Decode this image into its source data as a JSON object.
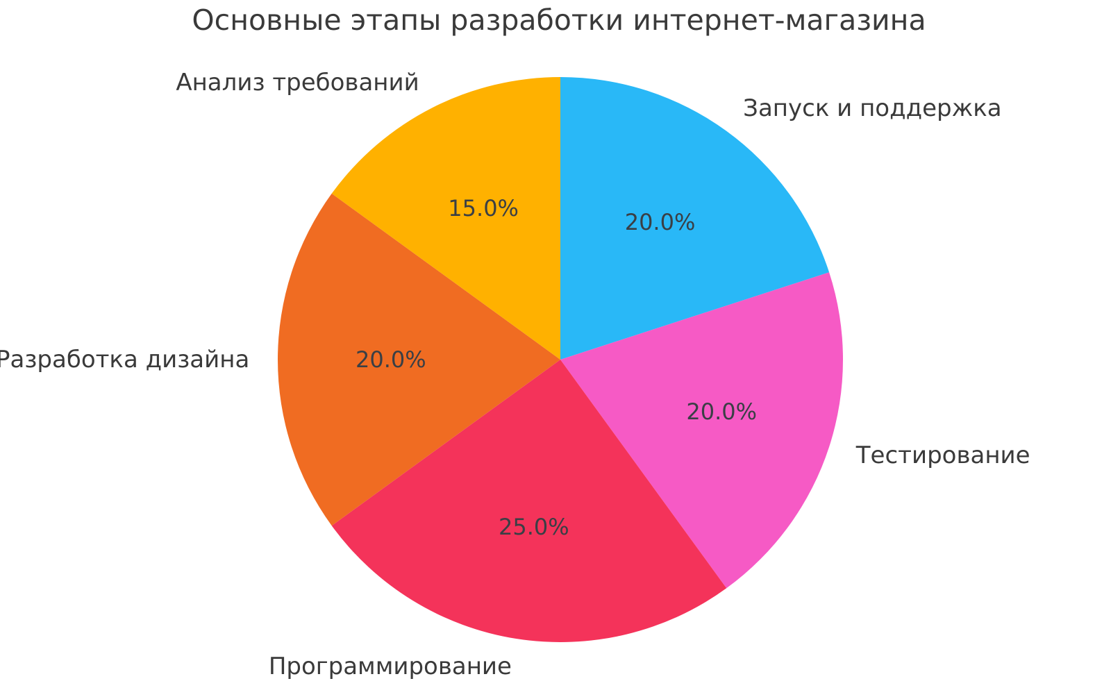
{
  "chart_data": {
    "type": "pie",
    "title": "Основные этапы разработки интернет-магазина",
    "categories": [
      "Запуск и поддержка",
      "Тестирование",
      "Программирование",
      "Разработка дизайна",
      "Анализ требований"
    ],
    "values": [
      20.0,
      20.0,
      25.0,
      20.0,
      15.0
    ],
    "value_labels": [
      "20.0%",
      "20.0%",
      "25.0%",
      "20.0%",
      "15.0%"
    ],
    "colors": [
      "#29b8f7",
      "#f65ac5",
      "#f4335a",
      "#f06c22",
      "#ffb100"
    ],
    "start_angle_deg": 90,
    "direction": "clockwise",
    "label_distance": 1.1,
    "pct_distance": 0.6,
    "legend": "none",
    "background_color": "#ffffff",
    "title_color": "#3a3a3a",
    "label_color": "#3a3a3a",
    "pct_label_color": "#3a3f45"
  }
}
